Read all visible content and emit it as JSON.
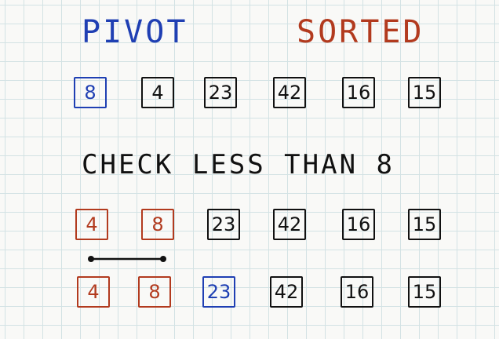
{
  "labels": {
    "pivot": "PIVOT",
    "sorted": "SORTED",
    "check": "CHECK LESS THAN 8"
  },
  "rows": [
    {
      "cells": [
        {
          "value": "8",
          "color": "#1f3fb3"
        },
        {
          "value": "4",
          "color": "#111111"
        },
        {
          "value": "23",
          "color": "#111111"
        },
        {
          "value": "42",
          "color": "#111111"
        },
        {
          "value": "16",
          "color": "#111111"
        },
        {
          "value": "15",
          "color": "#111111"
        }
      ]
    },
    {
      "cells": [
        {
          "value": "4",
          "color": "#b23a1e"
        },
        {
          "value": "8",
          "color": "#b23a1e"
        },
        {
          "value": "23",
          "color": "#111111"
        },
        {
          "value": "42",
          "color": "#111111"
        },
        {
          "value": "16",
          "color": "#111111"
        },
        {
          "value": "15",
          "color": "#111111"
        }
      ]
    },
    {
      "cells": [
        {
          "value": "4",
          "color": "#b23a1e"
        },
        {
          "value": "8",
          "color": "#b23a1e"
        },
        {
          "value": "23",
          "color": "#1f3fb3"
        },
        {
          "value": "42",
          "color": "#111111"
        },
        {
          "value": "16",
          "color": "#111111"
        },
        {
          "value": "15",
          "color": "#111111"
        }
      ]
    }
  ],
  "colors": {
    "pivot_blue": "#1f3fb3",
    "sorted_red": "#b23a1e",
    "ink": "#111111",
    "grid": "#d3e2e4"
  }
}
